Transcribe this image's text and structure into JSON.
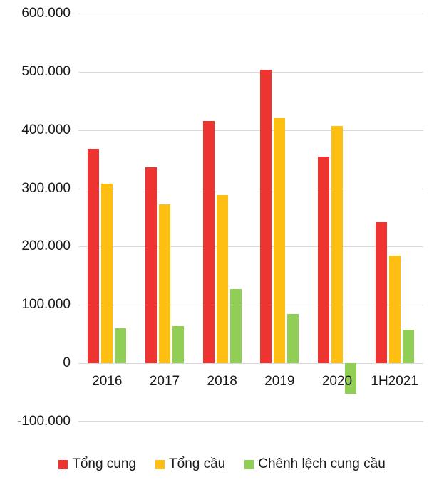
{
  "chart_data": {
    "type": "bar",
    "title": "",
    "xlabel": "",
    "ylabel": "",
    "categories": [
      "2016",
      "2017",
      "2018",
      "2019",
      "2020",
      "1H2021"
    ],
    "series": [
      {
        "name": "Tổng cung",
        "color": "#EE3431",
        "values": [
          368000,
          336000,
          415000,
          504000,
          355000,
          242000
        ]
      },
      {
        "name": "Tổng cầu",
        "color": "#FEBF12",
        "values": [
          308000,
          272000,
          288000,
          420000,
          407000,
          185000
        ]
      },
      {
        "name": "Chênh lệch cung cầu",
        "color": "#90CE55",
        "values": [
          60000,
          64000,
          127000,
          84000,
          -52000,
          57000
        ]
      }
    ],
    "ylim": [
      -100000,
      600000
    ],
    "yticks": [
      600000,
      500000,
      400000,
      300000,
      200000,
      100000,
      0,
      -100000
    ],
    "ytick_labels": [
      "600.000",
      "500.000",
      "400.000",
      "300.000",
      "200.000",
      "100.000",
      "0",
      "-100.000"
    ],
    "grid": true,
    "legend_position": "bottom"
  },
  "colors": {
    "grid": "#D9D9D9",
    "text": "#1A1A1A",
    "background": "#FFFFFF"
  }
}
